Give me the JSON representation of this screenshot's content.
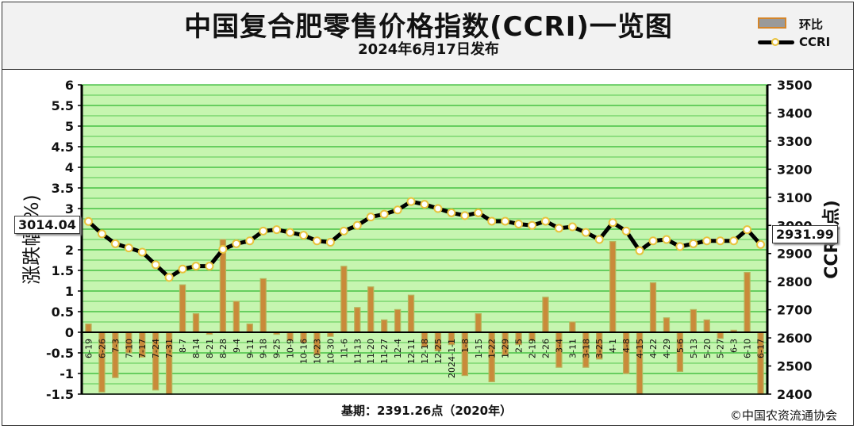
{
  "header": {
    "title": "中国复合肥零售价格指数(CCRI)一览图",
    "subtitle": "2024年6月17日发布"
  },
  "legend": {
    "bar_label": "环比",
    "line_label": "CCRI"
  },
  "footer": {
    "base_note": "基期：2391.26点（2020年）",
    "copyright": "©中国农资流通协会"
  },
  "callouts": {
    "first_value": "3014.04",
    "last_value": "2931.99"
  },
  "colors": {
    "plot_bg": "#c6f5b0",
    "gridline": "#2fb82f",
    "bar_fill": "#c98a3a",
    "bar_edge": "#b8b35a",
    "line": "#000000",
    "marker_fill": "#ffffff",
    "marker_edge": "#e8c23d"
  },
  "chart_data": {
    "type": "bar+line",
    "title": "中国复合肥零售价格指数(CCRI)一览图",
    "ylabel_left": "涨跌幅(%)",
    "ylabel_right": "CCRI(点)",
    "ylim_left": [
      -1.5,
      6
    ],
    "ylim_right": [
      2400,
      3500
    ],
    "left_ticks": [
      "-1.5",
      "-1",
      "-0.5",
      "0",
      "0.5",
      "1",
      "1.5",
      "2",
      "2.5",
      "3",
      "3.5",
      "4",
      "4.5",
      "5",
      "5.5",
      "6"
    ],
    "right_ticks": [
      "2400",
      "2500",
      "2600",
      "2700",
      "2800",
      "2900",
      "3000",
      "3100",
      "3200",
      "3300",
      "3400",
      "3500"
    ],
    "grid": true,
    "legend_position": "top-right",
    "categories": [
      "6-19",
      "6-26",
      "7-3",
      "7-10",
      "7-17",
      "7-24",
      "7-31",
      "8-7",
      "8-14",
      "8-21",
      "8-28",
      "9-4",
      "9-11",
      "9-18",
      "9-25",
      "10-9",
      "10-16",
      "10-23",
      "10-30",
      "11-6",
      "11-13",
      "11-20",
      "11-27",
      "12-4",
      "12-11",
      "12-18",
      "12-25",
      "2024-1-1",
      "1-8",
      "1-15",
      "1-22",
      "1-29",
      "2-5",
      "2-19",
      "2-26",
      "3-4",
      "3-11",
      "3-18",
      "3-25",
      "4-1",
      "4-8",
      "4-15",
      "4-22",
      "4-29",
      "5-6",
      "5-13",
      "5-20",
      "5-27",
      "6-3",
      "6-10",
      "6-17"
    ],
    "series": [
      {
        "name": "环比",
        "axis": "left",
        "values": [
          0.2,
          -1.45,
          -1.1,
          -0.5,
          -0.6,
          -1.4,
          -1.5,
          1.15,
          0.45,
          -0.05,
          2.25,
          0.75,
          0.2,
          1.3,
          -0.05,
          -0.2,
          -0.25,
          -0.55,
          -0.1,
          1.6,
          0.6,
          1.1,
          0.3,
          0.55,
          0.9,
          -0.35,
          -0.45,
          -0.3,
          -1.05,
          0.45,
          -1.2,
          -0.55,
          -0.3,
          -0.2,
          0.85,
          -0.85,
          0.25,
          -0.85,
          -0.65,
          2.2,
          -1.0,
          -1.5,
          1.2,
          0.35,
          -0.95,
          0.55,
          0.3,
          -0.15,
          0.05,
          1.45,
          -1.5
        ]
      },
      {
        "name": "CCRI",
        "axis": "right",
        "values": [
          3014.04,
          2970,
          2935,
          2920,
          2905,
          2860,
          2815,
          2845,
          2855,
          2855,
          2915,
          2935,
          2945,
          2980,
          2985,
          2975,
          2965,
          2945,
          2940,
          2980,
          3000,
          3030,
          3040,
          3055,
          3085,
          3075,
          3060,
          3045,
          3035,
          3045,
          3015,
          3015,
          3005,
          3000,
          3015,
          2990,
          2995,
          2975,
          2950,
          3010,
          2980,
          2910,
          2945,
          2950,
          2925,
          2935,
          2945,
          2945,
          2945,
          2985,
          2931.99
        ]
      }
    ]
  }
}
